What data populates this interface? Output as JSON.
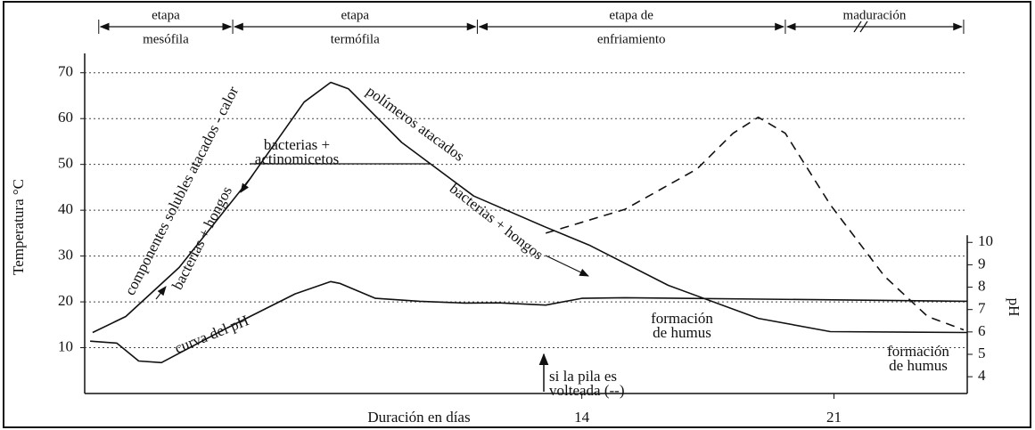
{
  "chart_data": {
    "type": "line",
    "xlabel": "Duración en días",
    "ylabel": "Temperatura °C",
    "y2label": "pH",
    "xlim": [
      0.2,
      24.7
    ],
    "xticks": [
      14,
      21
    ],
    "ylim": [
      0,
      75
    ],
    "yticks": [
      10,
      20,
      30,
      40,
      50,
      60,
      70
    ],
    "y2lim": [
      3.25,
      18.6
    ],
    "y2ticks": [
      4,
      5,
      6,
      7,
      8,
      9,
      10
    ],
    "grid": true,
    "series": [
      {
        "color": "#111111",
        "style": "solid",
        "x": [
          0.42,
          1.34,
          2.82,
          4.8,
          6.29,
          7.03,
          7.52,
          9.0,
          11.0,
          13.0,
          14.2,
          16.4,
          18.9,
          20.9,
          24.7
        ],
        "values": [
          13.3,
          16.8,
          27.5,
          47,
          63.6,
          67.9,
          66.5,
          54.8,
          43.1,
          36.3,
          32.4,
          23.6,
          16.4,
          13.5,
          13.3
        ]
      },
      {
        "color": "#111111",
        "style": "dashed",
        "x": [
          13.0,
          15.2,
          17.2,
          18.2,
          18.9,
          19.65,
          20.9,
          22.4,
          23.6,
          24.6
        ],
        "values": [
          35,
          40.2,
          49,
          56.8,
          60.3,
          56.8,
          41.2,
          25.6,
          16.8,
          13.9
        ]
      },
      {
        "color": "#111111",
        "style": "solid",
        "axis": "y2",
        "x": [
          0.35,
          1.09,
          1.7,
          2.33,
          4.06,
          6.04,
          7.03,
          7.28,
          8.27,
          9.5,
          10.74,
          11.7,
          13.0,
          14.0,
          15.2,
          24.7
        ],
        "values": [
          5.59,
          5.5,
          4.7,
          4.63,
          6.1,
          7.7,
          8.25,
          8.17,
          7.5,
          7.37,
          7.29,
          7.3,
          7.2,
          7.5,
          7.53,
          7.37
        ]
      }
    ],
    "stages": [
      {
        "lines": [
          "etapa",
          "mesófila"
        ],
        "from": 0.59,
        "to": 4.31
      },
      {
        "lines": [
          "etapa",
          "termófila"
        ],
        "from": 4.31,
        "to": 11.1
      },
      {
        "lines": [
          "etapa de",
          "enfriamiento"
        ],
        "from": 11.1,
        "to": 19.65
      },
      {
        "lines": [
          "maduración"
        ],
        "from": 19.65,
        "to": 24.6
      }
    ],
    "annotations": [
      {
        "lines": [
          "componentes solubles atacados - calor"
        ]
      },
      {
        "lines": [
          "bacterias + hongos"
        ]
      },
      {
        "lines": [
          "bacterias +",
          "actinomicetos"
        ]
      },
      {
        "lines": [
          "polímeros atacados"
        ]
      },
      {
        "lines": [
          "bacterias + hongos"
        ]
      },
      {
        "lines": [
          "curva del pH"
        ]
      },
      {
        "lines": [
          "formación",
          "de humus"
        ]
      },
      {
        "lines": [
          "formación",
          "de humus"
        ]
      },
      {
        "lines": [
          "si la pila es",
          "volteada (--)"
        ]
      }
    ]
  }
}
